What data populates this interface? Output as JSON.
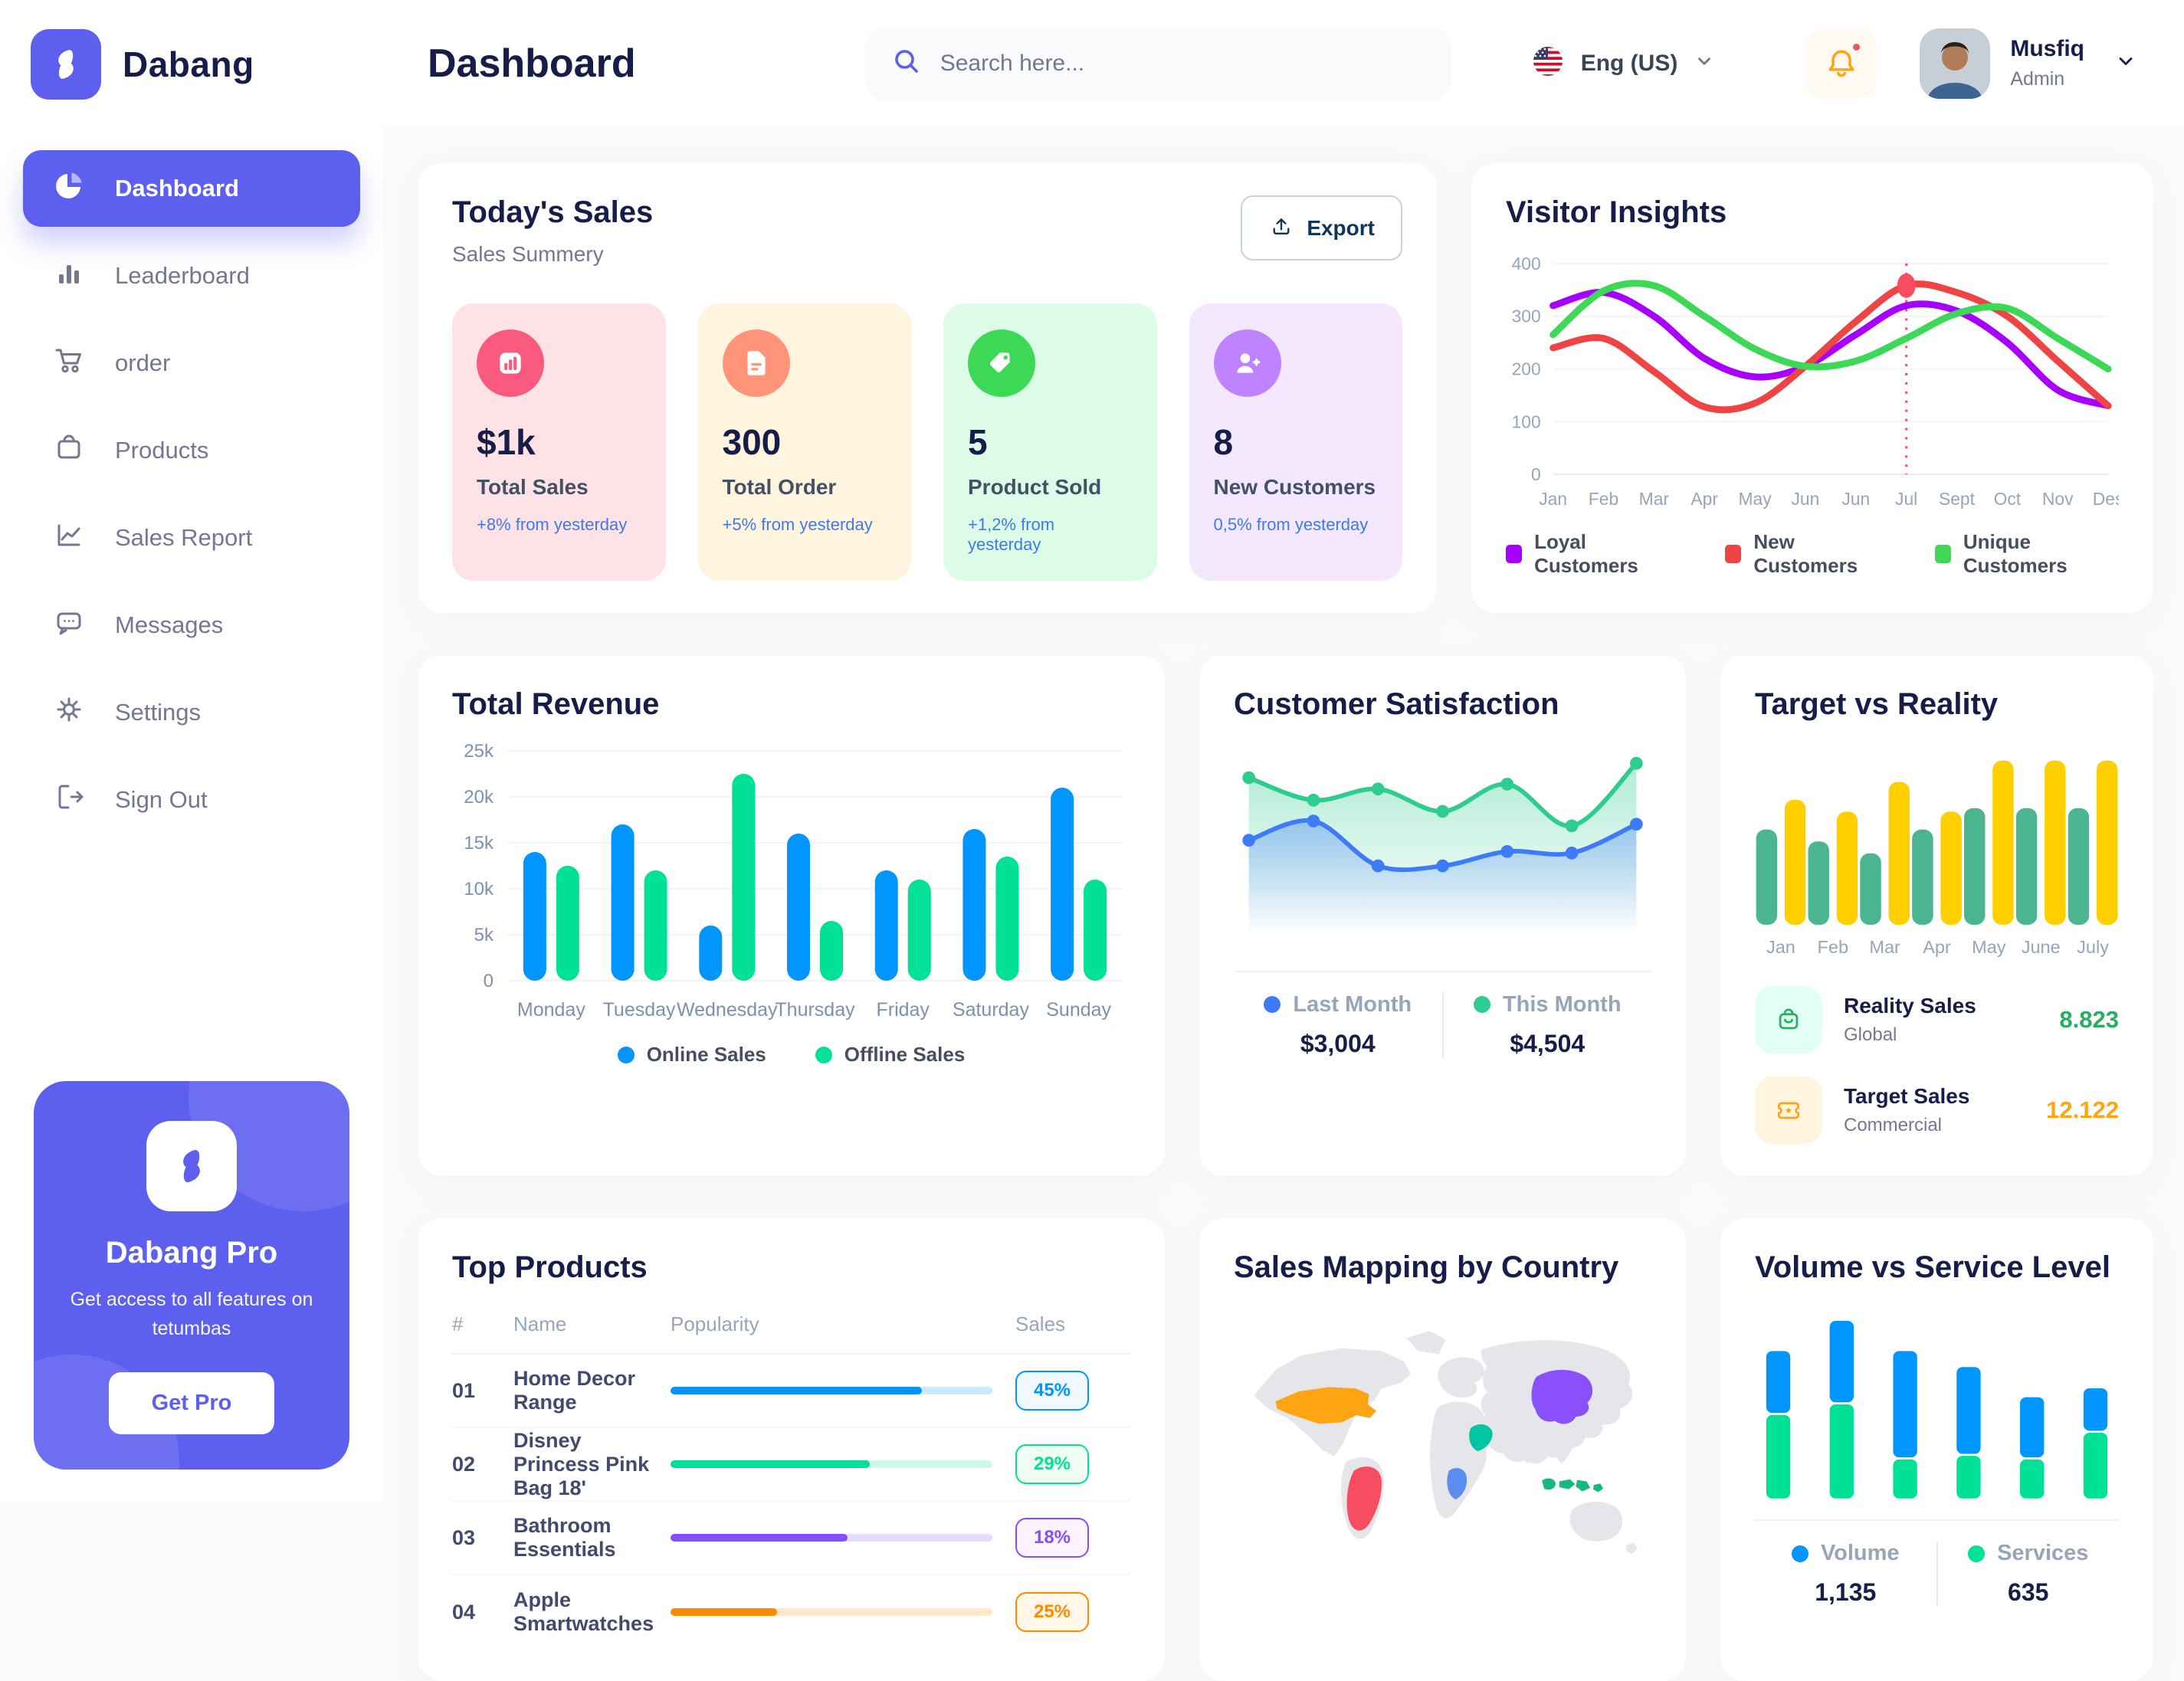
{
  "app": {
    "brand": "Dabang",
    "accent": "#5D5FEF"
  },
  "header": {
    "page_title": "Dashboard",
    "search_placeholder": "Search here...",
    "language": "Eng (US)",
    "user": {
      "name": "Musfiq",
      "role": "Admin"
    }
  },
  "sidebar": {
    "items": [
      {
        "label": "Dashboard",
        "active": true
      },
      {
        "label": "Leaderboard"
      },
      {
        "label": "order"
      },
      {
        "label": "Products"
      },
      {
        "label": "Sales Report"
      },
      {
        "label": "Messages"
      },
      {
        "label": "Settings"
      },
      {
        "label": "Sign Out"
      }
    ],
    "pro": {
      "title": "Dabang Pro",
      "subtitle": "Get access to all features on tetumbas",
      "cta": "Get Pro"
    }
  },
  "today_sales": {
    "title": "Today's Sales",
    "subtitle": "Sales Summery",
    "export_label": "Export",
    "stats": [
      {
        "value": "$1k",
        "label": "Total Sales",
        "delta": "+8% from yesterday",
        "bg": "#FFE2E5",
        "icon_bg": "#FA5A7D",
        "icon": "chart-bars"
      },
      {
        "value": "300",
        "label": "Total Order",
        "delta": "+5% from yesterday",
        "bg": "#FFF4DE",
        "icon_bg": "#FF947A",
        "icon": "order-file"
      },
      {
        "value": "5",
        "label": "Product Sold",
        "delta": "+1,2% from yesterday",
        "bg": "#DCFCE7",
        "icon_bg": "#3CD856",
        "icon": "tag"
      },
      {
        "value": "8",
        "label": "New Customers",
        "delta": "0,5% from yesterday",
        "bg": "#F3E8FF",
        "icon_bg": "#BF83FF",
        "icon": "person-plus"
      }
    ]
  },
  "visitor_insights": {
    "title": "Visitor Insights",
    "chart_data": {
      "type": "line",
      "x": [
        "Jan",
        "Feb",
        "Mar",
        "Apr",
        "May",
        "Jun",
        "Jun",
        "Jul",
        "Sept",
        "Oct",
        "Nov",
        "Des"
      ],
      "ylim": [
        0,
        400
      ],
      "yticks": [
        0,
        100,
        200,
        300,
        400
      ],
      "marker_index": 7,
      "marker_color": "#F64E60",
      "series": [
        {
          "name": "Loyal Customers",
          "color": "#A700FF",
          "values": [
            320,
            345,
            300,
            220,
            185,
            205,
            265,
            320,
            310,
            250,
            160,
            130
          ]
        },
        {
          "name": "New Customers",
          "color": "#EF4444",
          "values": [
            240,
            258,
            195,
            128,
            135,
            205,
            290,
            358,
            345,
            300,
            215,
            130
          ]
        },
        {
          "name": "Unique Customers",
          "color": "#3CD856",
          "values": [
            265,
            348,
            358,
            300,
            238,
            205,
            215,
            258,
            305,
            315,
            258,
            200
          ]
        }
      ]
    }
  },
  "total_revenue": {
    "title": "Total Revenue",
    "chart_data": {
      "type": "bar",
      "categories": [
        "Monday",
        "Tuesday",
        "Wednesday",
        "Thursday",
        "Friday",
        "Saturday",
        "Sunday"
      ],
      "ylim": [
        0,
        25
      ],
      "yticks": [
        0,
        5,
        10,
        15,
        20,
        25
      ],
      "ytick_labels": [
        "0",
        "5k",
        "10k",
        "15k",
        "20k",
        "25k"
      ],
      "series": [
        {
          "name": "Online Sales",
          "color": "#0095FF",
          "values": [
            14,
            17,
            6,
            16,
            12,
            16.5,
            21
          ]
        },
        {
          "name": "Offline Sales",
          "color": "#00E096",
          "values": [
            12.5,
            12,
            22.5,
            6.5,
            11,
            13.5,
            11
          ]
        }
      ]
    }
  },
  "customer_satisfaction": {
    "title": "Customer Satisfaction",
    "chart_data": {
      "type": "area",
      "ylim": [
        0,
        100
      ],
      "series": [
        {
          "name": "Last Month",
          "total": "$3,004",
          "color": "#3E7BFA",
          "values": [
            46,
            58,
            30,
            30,
            39,
            38,
            56
          ]
        },
        {
          "name": "This Month",
          "total": "$4,504",
          "color": "#2ECC8E",
          "values": [
            85,
            71,
            78,
            64,
            81,
            55,
            94
          ]
        }
      ]
    }
  },
  "target_vs_reality": {
    "title": "Target vs Reality",
    "chart_data": {
      "type": "bar",
      "categories": [
        "Jan",
        "Feb",
        "Mar",
        "Apr",
        "May",
        "June",
        "July"
      ],
      "ylim": [
        0,
        14.5
      ],
      "series": [
        {
          "name": "Reality Sales",
          "color": "#4AB58E",
          "values": [
            8,
            7,
            6,
            8,
            9.8,
            9.8,
            9.8
          ]
        },
        {
          "name": "Target Sales",
          "color": "#FFCF00",
          "values": [
            10.5,
            9.5,
            12,
            9.5,
            13.8,
            13.8,
            13.8
          ]
        }
      ]
    },
    "legend": [
      {
        "title": "Reality Sales",
        "sub": "Global",
        "value": "8.823",
        "value_color": "#27AE60",
        "tile_bg": "#E2FFF3",
        "icon_color": "#27AE60"
      },
      {
        "title": "Target Sales",
        "sub": "Commercial",
        "value": "12.122",
        "value_color": "#FFA412",
        "tile_bg": "#FFF4DE",
        "icon_color": "#FFA412"
      }
    ]
  },
  "top_products": {
    "title": "Top Products",
    "headers": [
      "#",
      "Name",
      "Popularity",
      "Sales"
    ],
    "rows": [
      {
        "num": "01",
        "name": "Home Decor Range",
        "popularity": 78,
        "sales": "45%",
        "color": "#0095FF",
        "badge_bg": "#F0F9FF"
      },
      {
        "num": "02",
        "name": "Disney Princess Pink Bag 18'",
        "popularity": 62,
        "sales": "29%",
        "color": "#00E096",
        "badge_bg": "#F0FDF4"
      },
      {
        "num": "03",
        "name": "Bathroom Essentials",
        "popularity": 55,
        "sales": "18%",
        "color": "#884DFF",
        "badge_bg": "#FBF4FF"
      },
      {
        "num": "04",
        "name": "Apple Smartwatches",
        "popularity": 33,
        "sales": "25%",
        "color": "#FF8900",
        "badge_bg": "#FFF7E8"
      }
    ]
  },
  "sales_mapping": {
    "title": "Sales Mapping by Country",
    "land_color": "#E4E6EA",
    "countries": [
      {
        "id": "usa",
        "name": "United States",
        "color": "#FFA412"
      },
      {
        "id": "brazil",
        "name": "Brazil",
        "color": "#F64E60"
      },
      {
        "id": "drc",
        "name": "DR Congo",
        "color": "#5A8DEE"
      },
      {
        "id": "saudi",
        "name": "Saudi Arabia",
        "color": "#00C5A2"
      },
      {
        "id": "china",
        "name": "China",
        "color": "#8950FC"
      },
      {
        "id": "indonesia",
        "name": "Indonesia",
        "color": "#18B97F"
      }
    ]
  },
  "volume_service": {
    "title": "Volume vs Service Level",
    "chart_data": {
      "type": "stacked-bar",
      "ylim": [
        0,
        100
      ],
      "series": [
        {
          "name": "Volume",
          "total": "1,135",
          "color": "#0095FF",
          "values": [
            36,
            47,
            61,
            50,
            35,
            25
          ]
        },
        {
          "name": "Services",
          "total": "635",
          "color": "#00E096",
          "values": [
            47,
            53,
            22,
            24,
            22,
            37
          ]
        }
      ]
    }
  }
}
